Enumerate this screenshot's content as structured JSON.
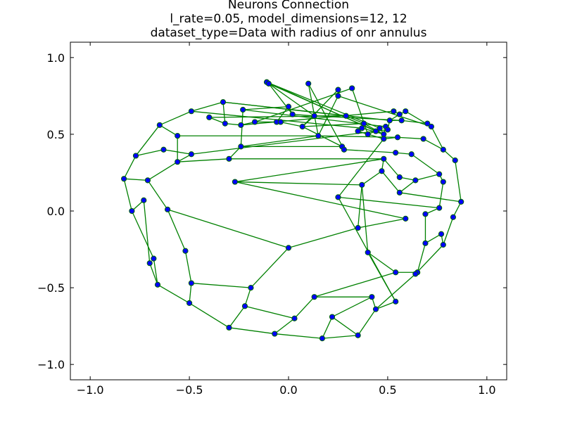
{
  "chart_data": {
    "type": "scatter",
    "title_lines": [
      "Neurons Connection",
      "l_rate=0.05, model_dimensions=12, 12",
      "dataset_type=Data with radius of onr annulus"
    ],
    "xlim": [
      -1.1,
      1.1
    ],
    "ylim": [
      -1.1,
      1.1
    ],
    "xticks": [
      -1.0,
      -0.5,
      0.0,
      0.5,
      1.0
    ],
    "xtick_labels": [
      "−1.0",
      "−0.5",
      "0.0",
      "0.5",
      "1.0"
    ],
    "yticks": [
      1.0,
      0.5,
      0.0,
      -0.5,
      -1.0
    ],
    "ytick_labels": [
      "1.0",
      "0.5",
      "0.0",
      "−0.5",
      "−1.0"
    ],
    "grid": false,
    "edge_color": "#008000",
    "node_fill": "#0000ff",
    "node_edge": "#006400",
    "nodes": [
      [
        -0.11,
        0.84
      ],
      [
        -0.1,
        0.83
      ],
      [
        0.1,
        0.83
      ],
      [
        0.25,
        0.79
      ],
      [
        0.32,
        0.8
      ],
      [
        0.25,
        0.75
      ],
      [
        -0.33,
        0.71
      ],
      [
        -0.49,
        0.65
      ],
      [
        -0.23,
        0.66
      ],
      [
        0.0,
        0.68
      ],
      [
        0.02,
        0.63
      ],
      [
        0.13,
        0.62
      ],
      [
        0.29,
        0.62
      ],
      [
        -0.4,
        0.61
      ],
      [
        0.38,
        0.57
      ],
      [
        0.53,
        0.65
      ],
      [
        0.59,
        0.65
      ],
      [
        0.56,
        0.63
      ],
      [
        -0.65,
        0.56
      ],
      [
        -0.32,
        0.57
      ],
      [
        -0.24,
        0.56
      ],
      [
        -0.17,
        0.58
      ],
      [
        -0.06,
        0.58
      ],
      [
        -0.04,
        0.58
      ],
      [
        0.07,
        0.55
      ],
      [
        0.37,
        0.54
      ],
      [
        0.35,
        0.52
      ],
      [
        0.4,
        0.5
      ],
      [
        0.44,
        0.52
      ],
      [
        0.46,
        0.54
      ],
      [
        0.48,
        0.5
      ],
      [
        0.49,
        0.55
      ],
      [
        0.5,
        0.53
      ],
      [
        0.51,
        0.59
      ],
      [
        0.57,
        0.59
      ],
      [
        0.7,
        0.57
      ],
      [
        0.72,
        0.55
      ],
      [
        -0.56,
        0.49
      ],
      [
        0.15,
        0.49
      ],
      [
        0.48,
        0.47
      ],
      [
        0.55,
        0.48
      ],
      [
        0.68,
        0.47
      ],
      [
        -0.77,
        0.36
      ],
      [
        -0.63,
        0.4
      ],
      [
        -0.49,
        0.37
      ],
      [
        -0.24,
        0.42
      ],
      [
        0.27,
        0.42
      ],
      [
        0.28,
        0.4
      ],
      [
        0.54,
        0.38
      ],
      [
        0.62,
        0.37
      ],
      [
        0.78,
        0.4
      ],
      [
        -0.56,
        0.32
      ],
      [
        -0.3,
        0.34
      ],
      [
        0.48,
        0.34
      ],
      [
        0.84,
        0.33
      ],
      [
        0.47,
        0.26
      ],
      [
        0.56,
        0.22
      ],
      [
        0.76,
        0.24
      ],
      [
        0.78,
        0.19
      ],
      [
        -0.83,
        0.21
      ],
      [
        -0.71,
        0.2
      ],
      [
        -0.27,
        0.19
      ],
      [
        0.37,
        0.17
      ],
      [
        0.64,
        0.2
      ],
      [
        0.56,
        0.12
      ],
      [
        0.25,
        0.09
      ],
      [
        0.87,
        0.06
      ],
      [
        -0.73,
        0.07
      ],
      [
        -0.79,
        0.0
      ],
      [
        -0.61,
        0.01
      ],
      [
        0.76,
        0.02
      ],
      [
        0.69,
        -0.02
      ],
      [
        0.59,
        -0.05
      ],
      [
        0.83,
        -0.04
      ],
      [
        0.35,
        -0.11
      ],
      [
        0.77,
        -0.15
      ],
      [
        0.69,
        -0.21
      ],
      [
        0.78,
        -0.22
      ],
      [
        0.0,
        -0.24
      ],
      [
        -0.52,
        -0.26
      ],
      [
        0.4,
        -0.27
      ],
      [
        -0.68,
        -0.31
      ],
      [
        -0.7,
        -0.34
      ],
      [
        0.54,
        -0.4
      ],
      [
        0.65,
        -0.4
      ],
      [
        0.64,
        -0.41
      ],
      [
        -0.66,
        -0.48
      ],
      [
        -0.49,
        -0.47
      ],
      [
        -0.19,
        -0.5
      ],
      [
        0.13,
        -0.56
      ],
      [
        0.42,
        -0.56
      ],
      [
        0.54,
        -0.59
      ],
      [
        -0.5,
        -0.6
      ],
      [
        -0.22,
        -0.62
      ],
      [
        0.44,
        -0.64
      ],
      [
        0.03,
        -0.7
      ],
      [
        0.22,
        -0.69
      ],
      [
        -0.3,
        -0.76
      ],
      [
        -0.07,
        -0.8
      ],
      [
        0.17,
        -0.83
      ],
      [
        0.35,
        -0.81
      ]
    ],
    "edges": [
      [
        0,
        1
      ],
      [
        0,
        28
      ],
      [
        0,
        29
      ],
      [
        1,
        10
      ],
      [
        1,
        30
      ],
      [
        2,
        38
      ],
      [
        3,
        5
      ],
      [
        3,
        24
      ],
      [
        4,
        21
      ],
      [
        5,
        38
      ],
      [
        6,
        7
      ],
      [
        6,
        12
      ],
      [
        6,
        19
      ],
      [
        7,
        25
      ],
      [
        7,
        18
      ],
      [
        8,
        9
      ],
      [
        8,
        45
      ],
      [
        8,
        31
      ],
      [
        9,
        10
      ],
      [
        9,
        22
      ],
      [
        10,
        11
      ],
      [
        11,
        12
      ],
      [
        11,
        24
      ],
      [
        11,
        34
      ],
      [
        12,
        13
      ],
      [
        12,
        14
      ],
      [
        13,
        19
      ],
      [
        14,
        30
      ],
      [
        15,
        17
      ],
      [
        15,
        20
      ],
      [
        16,
        17
      ],
      [
        16,
        36
      ],
      [
        17,
        33
      ],
      [
        18,
        37
      ],
      [
        18,
        42
      ],
      [
        19,
        20
      ],
      [
        20,
        21
      ],
      [
        21,
        22
      ],
      [
        22,
        23
      ],
      [
        23,
        24
      ],
      [
        24,
        46
      ],
      [
        25,
        26
      ],
      [
        25,
        30
      ],
      [
        26,
        27
      ],
      [
        27,
        28
      ],
      [
        28,
        29
      ],
      [
        29,
        30
      ],
      [
        30,
        31
      ],
      [
        31,
        32
      ],
      [
        32,
        33
      ],
      [
        33,
        34
      ],
      [
        34,
        35
      ],
      [
        35,
        36
      ],
      [
        36,
        50
      ],
      [
        37,
        38
      ],
      [
        37,
        51
      ],
      [
        38,
        45
      ],
      [
        38,
        40
      ],
      [
        39,
        40
      ],
      [
        39,
        65
      ],
      [
        40,
        41
      ],
      [
        41,
        50
      ],
      [
        42,
        59
      ],
      [
        42,
        43
      ],
      [
        43,
        44
      ],
      [
        44,
        32
      ],
      [
        44,
        51
      ],
      [
        45,
        46
      ],
      [
        45,
        52
      ],
      [
        46,
        47
      ],
      [
        47,
        48
      ],
      [
        48,
        49
      ],
      [
        49,
        57
      ],
      [
        50,
        54
      ],
      [
        51,
        52
      ],
      [
        51,
        60
      ],
      [
        52,
        53
      ],
      [
        53,
        61
      ],
      [
        53,
        56
      ],
      [
        53,
        55
      ],
      [
        54,
        66
      ],
      [
        55,
        64
      ],
      [
        55,
        62
      ],
      [
        56,
        63
      ],
      [
        57,
        58
      ],
      [
        57,
        63
      ],
      [
        58,
        70
      ],
      [
        59,
        60
      ],
      [
        59,
        68
      ],
      [
        60,
        69
      ],
      [
        61,
        62
      ],
      [
        61,
        72
      ],
      [
        62,
        74
      ],
      [
        62,
        80
      ],
      [
        63,
        64
      ],
      [
        64,
        66
      ],
      [
        65,
        70
      ],
      [
        65,
        91
      ],
      [
        66,
        73
      ],
      [
        67,
        68
      ],
      [
        67,
        82
      ],
      [
        68,
        81
      ],
      [
        69,
        78
      ],
      [
        69,
        79
      ],
      [
        70,
        71
      ],
      [
        71,
        76
      ],
      [
        72,
        74
      ],
      [
        73,
        77
      ],
      [
        74,
        78
      ],
      [
        75,
        76
      ],
      [
        75,
        77
      ],
      [
        76,
        84
      ],
      [
        77,
        85
      ],
      [
        78,
        88
      ],
      [
        79,
        87
      ],
      [
        80,
        91
      ],
      [
        81,
        86
      ],
      [
        82,
        86
      ],
      [
        83,
        89
      ],
      [
        83,
        84
      ],
      [
        84,
        85
      ],
      [
        85,
        94
      ],
      [
        86,
        92
      ],
      [
        87,
        88
      ],
      [
        87,
        92
      ],
      [
        88,
        93
      ],
      [
        89,
        95
      ],
      [
        89,
        90
      ],
      [
        90,
        94
      ],
      [
        90,
        96
      ],
      [
        91,
        94
      ],
      [
        92,
        97
      ],
      [
        93,
        97
      ],
      [
        93,
        95
      ],
      [
        94,
        100
      ],
      [
        95,
        98
      ],
      [
        96,
        99
      ],
      [
        96,
        100
      ],
      [
        97,
        98
      ],
      [
        98,
        99
      ],
      [
        99,
        100
      ],
      [
        2,
        47
      ],
      [
        14,
        24
      ],
      [
        26,
        39
      ],
      [
        33,
        6
      ],
      [
        1,
        11
      ],
      [
        4,
        27
      ],
      [
        5,
        36
      ],
      [
        80,
        83
      ]
    ]
  }
}
